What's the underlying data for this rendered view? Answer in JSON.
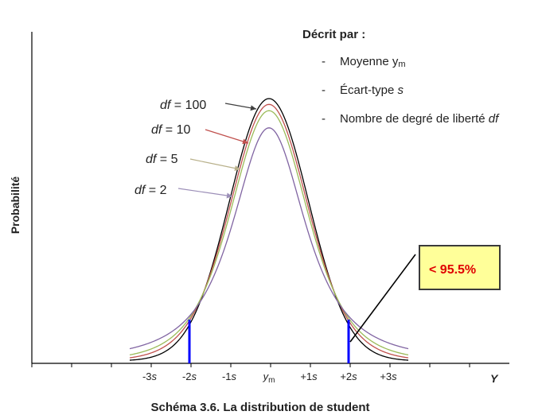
{
  "y_axis_label": "Probabilité",
  "x_axis_end_label": "Y",
  "caption": "Schéma 3.6. La distribution de student",
  "legend": {
    "title": "Décrit par :",
    "items": [
      {
        "bullet": "-",
        "text": "Moyenne y",
        "sub": "m"
      },
      {
        "bullet": "-",
        "text": "Écart-type ",
        "em": "s"
      },
      {
        "bullet": "-",
        "text": "Nombre de degré de liberté ",
        "em": "df"
      }
    ]
  },
  "callout": {
    "text": "< 95.5%",
    "bg": "#ffff99",
    "text_color": "#e00000"
  },
  "x_ticks": [
    {
      "pre": "-3",
      "em": "s"
    },
    {
      "pre": "-2",
      "em": "s"
    },
    {
      "pre": "-1",
      "em": "s"
    },
    {
      "pre": "",
      "em": "y",
      "sub": "m"
    },
    {
      "pre": "+1",
      "em": "s"
    },
    {
      "pre": "+2",
      "em": "s"
    },
    {
      "pre": "+3",
      "em": "s"
    }
  ],
  "chart_data": {
    "type": "line",
    "x_range": [
      -3.5,
      3.5
    ],
    "highlight_x": [
      -2,
      2
    ],
    "series": [
      {
        "name": "df = 100",
        "df": 100,
        "color": "#000000"
      },
      {
        "name": "df = 10",
        "df": 10,
        "color": "#c0504d"
      },
      {
        "name": "df = 5",
        "df": 5,
        "color": "#9bbb59"
      },
      {
        "name": "df = 2",
        "df": 2,
        "color": "#8064a2"
      }
    ],
    "arrow_colors": [
      "#404040",
      "#c0504d",
      "#b8b08a",
      "#9c8fb8"
    ],
    "marker_color": "#0000ff"
  }
}
